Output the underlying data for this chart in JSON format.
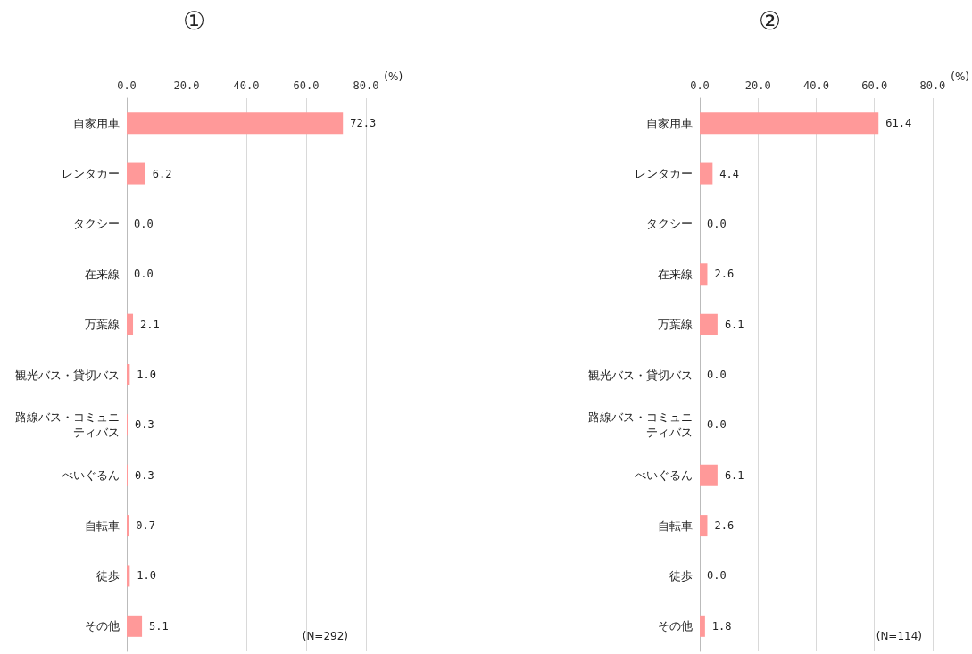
{
  "chart_data": [
    {
      "type": "bar",
      "title": "①",
      "orientation": "horizontal",
      "xlabel": "(%)",
      "categories": [
        "自家用車",
        "レンタカー",
        "タクシー",
        "在来線",
        "万葉線",
        "観光バス・貸切バス",
        "路線バス・コミュニティバス",
        "べいぐるん",
        "自転車",
        "徒歩",
        "その他"
      ],
      "values": [
        72.3,
        6.2,
        0,
        0,
        2.1,
        1.0,
        0.3,
        0.3,
        0.7,
        1.0,
        5.1
      ],
      "value_labels": [
        "72.3",
        "6.2",
        "0.0",
        "0.0",
        "2.1",
        "1.0",
        "0.3",
        "0.3",
        "0.7",
        "1.0",
        "5.1"
      ],
      "color": "#ff9999",
      "xlim": [
        0,
        80
      ],
      "xticks": [
        {
          "value": 0,
          "label": "0.0"
        },
        {
          "value": 20,
          "label": "20.0"
        },
        {
          "value": 40,
          "label": "40.0"
        },
        {
          "value": 60,
          "label": "60.0"
        },
        {
          "value": 80,
          "label": "80.0"
        }
      ],
      "grid": "x",
      "annotations": [
        "(N=292)"
      ]
    },
    {
      "type": "bar",
      "title": "②",
      "orientation": "horizontal",
      "xlabel": "(%)",
      "categories": [
        "自家用車",
        "レンタカー",
        "タクシー",
        "在来線",
        "万葉線",
        "観光バス・貸切バス",
        "路線バス・コミュニティバス",
        "べいぐるん",
        "自転車",
        "徒歩",
        "その他"
      ],
      "values": [
        61.4,
        4.4,
        0,
        2.6,
        6.1,
        0,
        0,
        6.1,
        2.6,
        0,
        1.8
      ],
      "value_labels": [
        "61.4",
        "4.4",
        "0.0",
        "2.6",
        "6.1",
        "0.0",
        "0.0",
        "6.1",
        "2.6",
        "0.0",
        "1.8"
      ],
      "color": "#ff9999",
      "xlim": [
        0,
        80
      ],
      "xticks": [
        {
          "value": 0,
          "label": "0.0"
        },
        {
          "value": 20,
          "label": "20.0"
        },
        {
          "value": 40,
          "label": "40.0"
        },
        {
          "value": 60,
          "label": "60.0"
        },
        {
          "value": 80,
          "label": "80.0"
        }
      ],
      "grid": "x",
      "annotations": [
        "(N=114)"
      ]
    }
  ]
}
